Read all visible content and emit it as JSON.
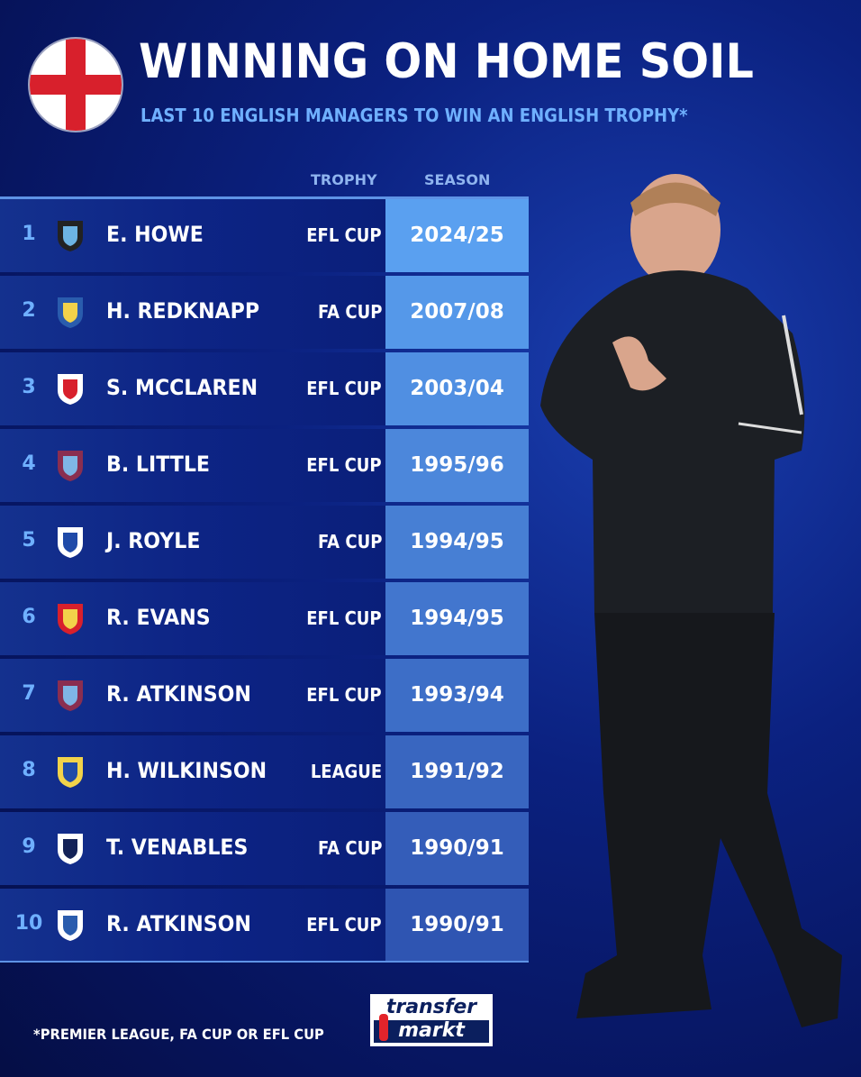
{
  "header": {
    "title": "WINNING ON HOME SOIL",
    "subtitle": "LAST 10 ENGLISH MANAGERS TO WIN AN ENGLISH TROPHY*",
    "flag_icon": "england-flag-icon"
  },
  "table": {
    "columns": {
      "trophy": "TROPHY",
      "season": "SEASON"
    },
    "rows": [
      {
        "rank": "1",
        "name": "E. HOWE",
        "club_icon": "newcastle-crest-icon",
        "trophy": "EFL CUP",
        "season": "2024/25"
      },
      {
        "rank": "2",
        "name": "H. REDKNAPP",
        "club_icon": "portsmouth-crest-icon",
        "trophy": "FA CUP",
        "season": "2007/08"
      },
      {
        "rank": "3",
        "name": "S. MCCLAREN",
        "club_icon": "middlesbrough-crest-icon",
        "trophy": "EFL CUP",
        "season": "2003/04"
      },
      {
        "rank": "4",
        "name": "B. LITTLE",
        "club_icon": "aston-villa-crest-icon",
        "trophy": "EFL CUP",
        "season": "1995/96"
      },
      {
        "rank": "5",
        "name": "J. ROYLE",
        "club_icon": "everton-crest-icon",
        "trophy": "FA CUP",
        "season": "1994/95"
      },
      {
        "rank": "6",
        "name": "R. EVANS",
        "club_icon": "liverpool-crest-icon",
        "trophy": "EFL CUP",
        "season": "1994/95"
      },
      {
        "rank": "7",
        "name": "R. ATKINSON",
        "club_icon": "aston-villa-crest-icon",
        "trophy": "EFL CUP",
        "season": "1993/94"
      },
      {
        "rank": "8",
        "name": "H. WILKINSON",
        "club_icon": "leeds-crest-icon",
        "trophy": "LEAGUE",
        "season": "1991/92"
      },
      {
        "rank": "9",
        "name": "T. VENABLES",
        "club_icon": "tottenham-crest-icon",
        "trophy": "FA CUP",
        "season": "1990/91"
      },
      {
        "rank": "10",
        "name": "R. ATKINSON",
        "club_icon": "sheffield-wednesday-crest-icon",
        "trophy": "EFL CUP",
        "season": "1990/91"
      }
    ]
  },
  "footnote": "*PREMIER LEAGUE, FA CUP OR EFL CUP",
  "logo": {
    "line1": "transfer",
    "line2": "markt"
  },
  "colors": {
    "accent": "#6fb0ff",
    "season_top": "#5aa0f0",
    "season_bottom": "#2f55b2",
    "flag_red": "#d8202c"
  }
}
